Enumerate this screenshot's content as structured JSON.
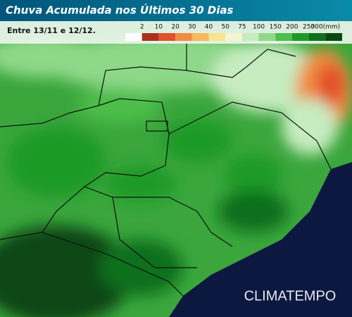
{
  "header": {
    "title": "Chuva Acumulada nos Últimos 30 Dias",
    "period": "Entre 13/11 e 12/12."
  },
  "legend": {
    "labels": [
      "2",
      "10",
      "20",
      "30",
      "40",
      "50",
      "75",
      "100",
      "150",
      "200",
      "250",
      "300(mm)"
    ],
    "colors": [
      "#ffffff",
      "#a8321e",
      "#e2502c",
      "#f08c40",
      "#f6b860",
      "#f8e48c",
      "#f2f6d2",
      "#c6ecc0",
      "#8ed88a",
      "#4cbe4a",
      "#1f9a26",
      "#10701c",
      "#0a4612"
    ]
  },
  "brand": "CLIMATEMPO"
}
